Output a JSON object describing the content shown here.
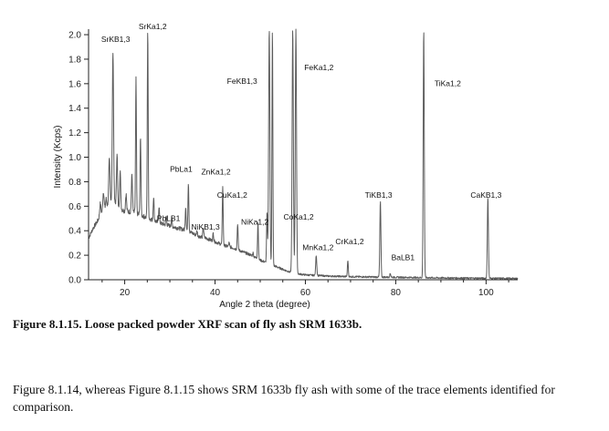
{
  "chart_data": {
    "type": "line",
    "title": "",
    "xlabel": "Angle 2 theta (degree)",
    "ylabel": "Intensity (Kcps)",
    "xlim": [
      12,
      107
    ],
    "ylim": [
      0,
      2.0
    ],
    "xticks": [
      20,
      40,
      60,
      80,
      100
    ],
    "yticks": [
      0.0,
      0.2,
      0.4,
      0.6,
      0.8,
      1.0,
      1.2,
      1.4,
      1.6,
      1.8,
      2.0
    ],
    "baseline": [
      [
        12,
        0.34
      ],
      [
        13,
        0.42
      ],
      [
        14,
        0.48
      ],
      [
        15,
        0.55
      ],
      [
        16,
        0.6
      ],
      [
        17,
        0.64
      ],
      [
        18,
        0.62
      ],
      [
        19,
        0.58
      ],
      [
        20,
        0.56
      ],
      [
        22,
        0.55
      ],
      [
        24,
        0.52
      ],
      [
        26,
        0.49
      ],
      [
        28,
        0.46
      ],
      [
        30,
        0.44
      ],
      [
        32,
        0.42
      ],
      [
        34,
        0.4
      ],
      [
        36,
        0.36
      ],
      [
        38,
        0.34
      ],
      [
        40,
        0.31
      ],
      [
        42,
        0.28
      ],
      [
        44,
        0.26
      ],
      [
        46,
        0.23
      ],
      [
        48,
        0.2
      ],
      [
        50,
        0.16
      ],
      [
        52,
        0.13
      ],
      [
        54,
        0.1
      ],
      [
        56,
        0.07
      ],
      [
        58,
        0.05
      ],
      [
        60,
        0.04
      ],
      [
        65,
        0.03
      ],
      [
        70,
        0.025
      ],
      [
        80,
        0.02
      ],
      [
        90,
        0.015
      ],
      [
        100,
        0.012
      ],
      [
        107,
        0.01
      ]
    ],
    "peaks": [
      {
        "x": 14.6,
        "y": 0.62,
        "w": 0.35
      },
      {
        "x": 15.3,
        "y": 0.72,
        "w": 0.35
      },
      {
        "x": 15.9,
        "y": 0.66,
        "w": 0.3
      },
      {
        "x": 16.6,
        "y": 0.98,
        "w": 0.35
      },
      {
        "x": 17.4,
        "y": 1.87,
        "w": 0.35
      },
      {
        "x": 18.3,
        "y": 1.04,
        "w": 0.3
      },
      {
        "x": 19.0,
        "y": 0.88,
        "w": 0.3
      },
      {
        "x": 20.3,
        "y": 0.7,
        "w": 0.3
      },
      {
        "x": 21.6,
        "y": 0.86,
        "w": 0.3
      },
      {
        "x": 22.5,
        "y": 1.64,
        "w": 0.25
      },
      {
        "x": 23.5,
        "y": 1.18,
        "w": 0.25
      },
      {
        "x": 25.1,
        "y": 2.05,
        "w": 0.25
      },
      {
        "x": 26.4,
        "y": 0.68,
        "w": 0.25
      },
      {
        "x": 27.6,
        "y": 0.6,
        "w": 0.25
      },
      {
        "x": 29.2,
        "y": 0.52,
        "w": 0.25
      },
      {
        "x": 30.4,
        "y": 0.5,
        "w": 0.25
      },
      {
        "x": 33.5,
        "y": 0.6,
        "w": 0.25
      },
      {
        "x": 34.1,
        "y": 0.8,
        "w": 0.25
      },
      {
        "x": 36.0,
        "y": 0.4,
        "w": 0.25
      },
      {
        "x": 37.4,
        "y": 0.43,
        "w": 0.25
      },
      {
        "x": 39.6,
        "y": 0.38,
        "w": 0.25
      },
      {
        "x": 41.7,
        "y": 0.77,
        "w": 0.25
      },
      {
        "x": 43.1,
        "y": 0.3,
        "w": 0.25
      },
      {
        "x": 45.0,
        "y": 0.46,
        "w": 0.25
      },
      {
        "x": 48.4,
        "y": 0.22,
        "w": 0.25
      },
      {
        "x": 49.5,
        "y": 0.47,
        "w": 0.25
      },
      {
        "x": 51.5,
        "y": 0.55,
        "w": 0.25
      },
      {
        "x": 52.0,
        "y": 2.05,
        "w": 0.35
      },
      {
        "x": 52.7,
        "y": 2.05,
        "w": 0.25
      },
      {
        "x": 57.2,
        "y": 2.05,
        "w": 0.35
      },
      {
        "x": 57.9,
        "y": 2.05,
        "w": 0.35
      },
      {
        "x": 62.4,
        "y": 0.2,
        "w": 0.3
      },
      {
        "x": 69.4,
        "y": 0.16,
        "w": 0.25
      },
      {
        "x": 76.6,
        "y": 0.64,
        "w": 0.3
      },
      {
        "x": 78.8,
        "y": 0.05,
        "w": 0.3
      },
      {
        "x": 86.2,
        "y": 2.05,
        "w": 0.3
      },
      {
        "x": 100.4,
        "y": 0.68,
        "w": 0.3
      }
    ],
    "annotations": [
      {
        "text": "SrKa1,2",
        "x": 26.2,
        "y": 2.08
      },
      {
        "text": "SrKB1,3",
        "x": 18.0,
        "y": 1.94
      },
      {
        "text": "FeKB1,3",
        "x": 46.0,
        "y": 1.6
      },
      {
        "text": "FeKa1,2",
        "x": 63.0,
        "y": 1.71
      },
      {
        "text": "TiKa1,2",
        "x": 91.5,
        "y": 1.58
      },
      {
        "text": "PbLa1",
        "x": 32.5,
        "y": 0.88
      },
      {
        "text": "ZnKa1,2",
        "x": 40.2,
        "y": 0.86
      },
      {
        "text": "CuKa1,2",
        "x": 43.8,
        "y": 0.67
      },
      {
        "text": "TiKB1,3",
        "x": 76.2,
        "y": 0.67
      },
      {
        "text": "CaKB1,3",
        "x": 100.0,
        "y": 0.67
      },
      {
        "text": "PbLB1",
        "x": 29.7,
        "y": 0.48
      },
      {
        "text": "NiKa1,2",
        "x": 48.8,
        "y": 0.45
      },
      {
        "text": "CoKa1,2",
        "x": 58.5,
        "y": 0.49
      },
      {
        "text": "NiKB1,3",
        "x": 37.9,
        "y": 0.41
      },
      {
        "text": "CrKa1,2",
        "x": 69.8,
        "y": 0.29
      },
      {
        "text": "MnKa1,2",
        "x": 62.8,
        "y": 0.24
      },
      {
        "text": "BaLB1",
        "x": 81.6,
        "y": 0.16
      }
    ],
    "colors": {
      "line": "#5c5c5c",
      "axis": "#222222"
    },
    "grid": false,
    "legend": "none"
  },
  "text": {
    "caption": "Figure 8.1.15. Loose packed powder XRF scan of fly ash SRM 1633b.",
    "paragraph": "Figure 8.1.14, whereas Figure 8.1.15 shows SRM 1633b fly ash with some of the trace elements identified for comparison."
  }
}
